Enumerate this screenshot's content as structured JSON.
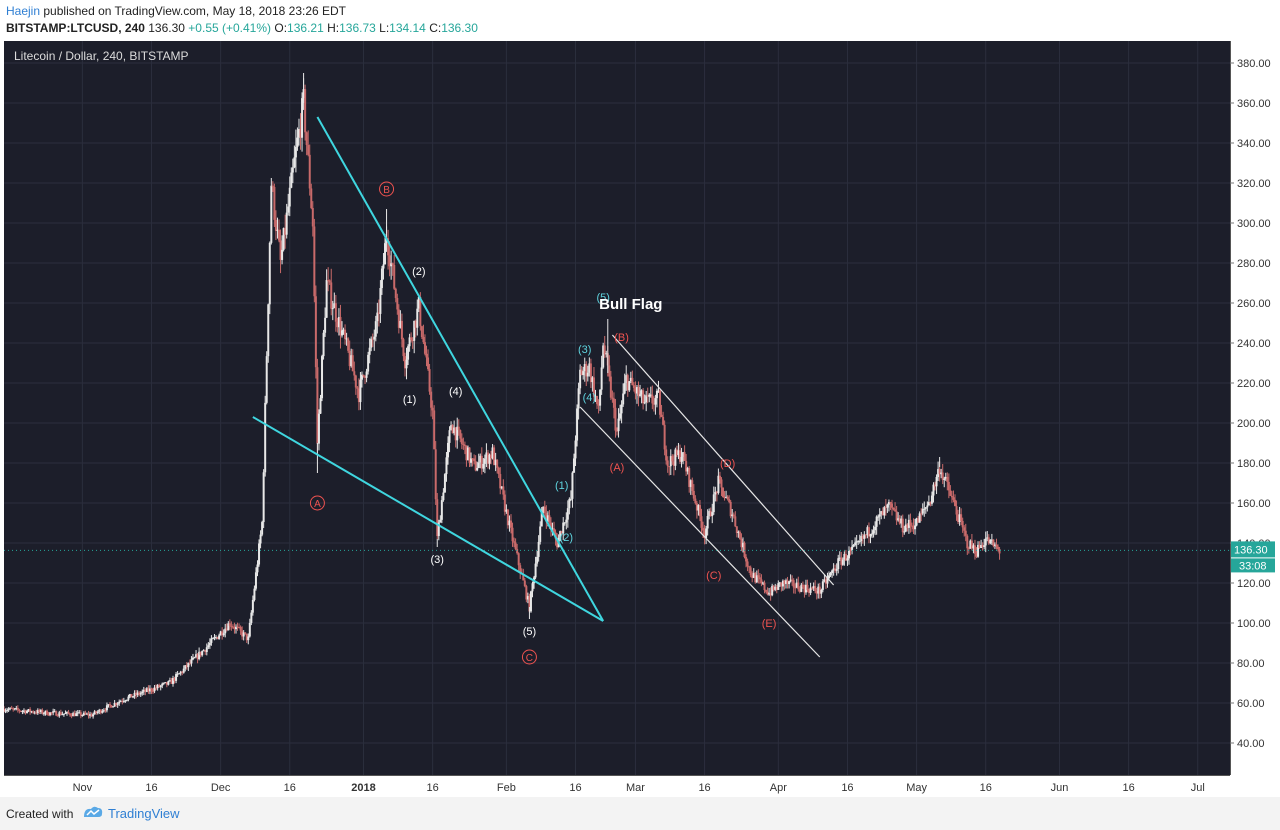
{
  "header": {
    "author": "Haejin",
    "published_text": "published on TradingView.com, May 18, 2018 23:26 EDT",
    "symbol": "BITSTAMP:LTCUSD, 240",
    "last": "136.30",
    "change": "+0.55 (+0.41%)",
    "o_label": "O:",
    "o_value": "136.21",
    "h_label": "H:",
    "h_value": "136.73",
    "l_label": "L:",
    "l_value": "134.14",
    "c_label": "C:",
    "c_value": "136.30"
  },
  "legend": "Litecoin / Dollar, 240, BITSTAMP",
  "footer": {
    "created": "Created with",
    "brand": "TradingView"
  },
  "colors": {
    "background": "#1c1e2a",
    "candle_up": "#e8e8e8",
    "candle_down": "#c96a6a",
    "trend_cyan": "#3fd6df",
    "channel_white": "#e6e6e6",
    "label_red": "#ef5350",
    "label_cyan": "#5fd4df",
    "price_badge": "#26a69a"
  },
  "chart_data": {
    "type": "candlestick",
    "title": "Litecoin / Dollar, 240, BITSTAMP",
    "ylim": [
      30,
      390
    ],
    "yticks": [
      "380.00",
      "360.00",
      "340.00",
      "320.00",
      "300.00",
      "280.00",
      "260.00",
      "240.00",
      "220.00",
      "200.00",
      "180.00",
      "160.00",
      "140.00",
      "120.00",
      "100.00",
      "80.00",
      "60.00",
      "40.00"
    ],
    "ytick_values": [
      380,
      360,
      340,
      320,
      300,
      280,
      260,
      240,
      220,
      200,
      180,
      160,
      140,
      120,
      100,
      80,
      60,
      40
    ],
    "x_start": "2017-10-15",
    "x_end": "2018-07-08",
    "xticks": [
      {
        "date": "2017-11-01",
        "label": "Nov"
      },
      {
        "date": "2017-11-16",
        "label": "16"
      },
      {
        "date": "2017-12-01",
        "label": "Dec"
      },
      {
        "date": "2017-12-16",
        "label": "16"
      },
      {
        "date": "2018-01-01",
        "label": "2018"
      },
      {
        "date": "2018-01-16",
        "label": "16"
      },
      {
        "date": "2018-02-01",
        "label": "Feb"
      },
      {
        "date": "2018-02-16",
        "label": "16"
      },
      {
        "date": "2018-03-01",
        "label": "Mar"
      },
      {
        "date": "2018-03-16",
        "label": "16"
      },
      {
        "date": "2018-04-01",
        "label": "Apr"
      },
      {
        "date": "2018-04-16",
        "label": "16"
      },
      {
        "date": "2018-05-01",
        "label": "May"
      },
      {
        "date": "2018-05-16",
        "label": "16"
      },
      {
        "date": "2018-06-01",
        "label": "Jun"
      },
      {
        "date": "2018-06-16",
        "label": "16"
      },
      {
        "date": "2018-07-01",
        "label": "Jul"
      }
    ],
    "price_path": [
      {
        "date": "2017-10-15",
        "price": 57
      },
      {
        "date": "2017-10-25",
        "price": 55
      },
      {
        "date": "2017-11-03",
        "price": 54
      },
      {
        "date": "2017-11-10",
        "price": 62
      },
      {
        "date": "2017-11-20",
        "price": 70
      },
      {
        "date": "2017-11-28",
        "price": 88
      },
      {
        "date": "2017-12-03",
        "price": 100
      },
      {
        "date": "2017-12-07",
        "price": 92
      },
      {
        "date": "2017-12-10",
        "price": 150
      },
      {
        "date": "2017-12-12",
        "price": 320
      },
      {
        "date": "2017-12-14",
        "price": 280
      },
      {
        "date": "2017-12-17",
        "price": 330
      },
      {
        "date": "2017-12-19",
        "price": 360
      },
      {
        "date": "2017-12-21",
        "price": 300
      },
      {
        "date": "2017-12-22",
        "price": 190
      },
      {
        "date": "2017-12-24",
        "price": 270
      },
      {
        "date": "2017-12-28",
        "price": 240
      },
      {
        "date": "2017-12-31",
        "price": 215
      },
      {
        "date": "2018-01-04",
        "price": 250
      },
      {
        "date": "2018-01-06",
        "price": 295
      },
      {
        "date": "2018-01-10",
        "price": 232
      },
      {
        "date": "2018-01-13",
        "price": 258
      },
      {
        "date": "2018-01-16",
        "price": 205
      },
      {
        "date": "2018-01-17",
        "price": 142
      },
      {
        "date": "2018-01-20",
        "price": 200
      },
      {
        "date": "2018-01-25",
        "price": 178
      },
      {
        "date": "2018-01-29",
        "price": 185
      },
      {
        "date": "2018-02-02",
        "price": 145
      },
      {
        "date": "2018-02-06",
        "price": 108
      },
      {
        "date": "2018-02-09",
        "price": 158
      },
      {
        "date": "2018-02-12",
        "price": 140
      },
      {
        "date": "2018-02-15",
        "price": 162
      },
      {
        "date": "2018-02-17",
        "price": 225
      },
      {
        "date": "2018-02-19",
        "price": 228
      },
      {
        "date": "2018-02-21",
        "price": 205
      },
      {
        "date": "2018-02-22",
        "price": 240
      },
      {
        "date": "2018-02-25",
        "price": 195
      },
      {
        "date": "2018-02-27",
        "price": 222
      },
      {
        "date": "2018-03-03",
        "price": 210
      },
      {
        "date": "2018-03-06",
        "price": 212
      },
      {
        "date": "2018-03-08",
        "price": 180
      },
      {
        "date": "2018-03-11",
        "price": 185
      },
      {
        "date": "2018-03-16",
        "price": 145
      },
      {
        "date": "2018-03-19",
        "price": 170
      },
      {
        "date": "2018-03-22",
        "price": 155
      },
      {
        "date": "2018-03-26",
        "price": 125
      },
      {
        "date": "2018-03-30",
        "price": 115
      },
      {
        "date": "2018-04-02",
        "price": 120
      },
      {
        "date": "2018-04-06",
        "price": 118
      },
      {
        "date": "2018-04-10",
        "price": 116
      },
      {
        "date": "2018-04-14",
        "price": 130
      },
      {
        "date": "2018-04-18",
        "price": 138
      },
      {
        "date": "2018-04-22",
        "price": 150
      },
      {
        "date": "2018-04-25",
        "price": 158
      },
      {
        "date": "2018-04-28",
        "price": 148
      },
      {
        "date": "2018-05-01",
        "price": 150
      },
      {
        "date": "2018-05-04",
        "price": 162
      },
      {
        "date": "2018-05-06",
        "price": 178
      },
      {
        "date": "2018-05-09",
        "price": 160
      },
      {
        "date": "2018-05-12",
        "price": 140
      },
      {
        "date": "2018-05-14",
        "price": 136
      },
      {
        "date": "2018-05-16",
        "price": 142
      },
      {
        "date": "2018-05-19",
        "price": 136
      }
    ],
    "extremes": [
      {
        "date": "2017-12-19",
        "price": 375
      },
      {
        "date": "2017-12-22",
        "price": 175
      },
      {
        "date": "2018-01-06",
        "price": 307
      },
      {
        "date": "2018-01-17",
        "price": 138
      },
      {
        "date": "2018-02-06",
        "price": 102
      },
      {
        "date": "2018-02-23",
        "price": 252
      },
      {
        "date": "2018-05-06",
        "price": 183
      }
    ],
    "lines": [
      {
        "id": "upper-wedge",
        "color": "cyan",
        "from": {
          "date": "2017-12-22",
          "price": 353
        },
        "to": {
          "date": "2018-02-22",
          "price": 101
        }
      },
      {
        "id": "lower-wedge",
        "color": "cyan",
        "from": {
          "date": "2017-12-08",
          "price": 203
        },
        "to": {
          "date": "2018-02-22",
          "price": 101
        }
      },
      {
        "id": "flag-upper",
        "color": "white",
        "from": {
          "date": "2018-02-24",
          "price": 244
        },
        "to": {
          "date": "2018-04-13",
          "price": 119
        }
      },
      {
        "id": "flag-lower",
        "color": "white",
        "from": {
          "date": "2018-02-17",
          "price": 208
        },
        "to": {
          "date": "2018-04-10",
          "price": 83
        }
      }
    ],
    "annotations": [
      {
        "text": "(2)",
        "date": "2018-01-13",
        "price": 276,
        "color": "white",
        "circled": false
      },
      {
        "text": "(1)",
        "date": "2018-01-11",
        "price": 212,
        "color": "white",
        "circled": false
      },
      {
        "text": "(4)",
        "date": "2018-01-21",
        "price": 216,
        "color": "white",
        "circled": false
      },
      {
        "text": "(3)",
        "date": "2018-01-17",
        "price": 132,
        "color": "white",
        "circled": false
      },
      {
        "text": "(5)",
        "date": "2018-02-06",
        "price": 96,
        "color": "white",
        "circled": false
      },
      {
        "text": "(1)",
        "date": "2018-02-13",
        "price": 169,
        "color": "cyan",
        "circled": false
      },
      {
        "text": "(2)",
        "date": "2018-02-14",
        "price": 143,
        "color": "cyan",
        "circled": false
      },
      {
        "text": "(3)",
        "date": "2018-02-18",
        "price": 237,
        "color": "cyan",
        "circled": false
      },
      {
        "text": "(4)",
        "date": "2018-02-19",
        "price": 213,
        "color": "cyan",
        "circled": false
      },
      {
        "text": "(5)",
        "date": "2018-02-22",
        "price": 263,
        "color": "cyan",
        "circled": false
      },
      {
        "text": "(B)",
        "date": "2018-02-26",
        "price": 243,
        "color": "red",
        "circled": false
      },
      {
        "text": "(A)",
        "date": "2018-02-25",
        "price": 178,
        "color": "red",
        "circled": false
      },
      {
        "text": "(D)",
        "date": "2018-03-21",
        "price": 180,
        "color": "red",
        "circled": false
      },
      {
        "text": "(C)",
        "date": "2018-03-18",
        "price": 124,
        "color": "red",
        "circled": false
      },
      {
        "text": "(E)",
        "date": "2018-03-30",
        "price": 100,
        "color": "red",
        "circled": false
      },
      {
        "text": "B",
        "date": "2018-01-06",
        "price": 317,
        "color": "red",
        "circled": true
      },
      {
        "text": "A",
        "date": "2017-12-22",
        "price": 160,
        "color": "red",
        "circled": true
      },
      {
        "text": "C",
        "date": "2018-02-06",
        "price": 83,
        "color": "red",
        "circled": true
      },
      {
        "text": "Bull Flag",
        "date": "2018-02-28",
        "price": 259,
        "color": "white",
        "circled": false,
        "bold": true
      }
    ],
    "last_price": {
      "label": "136.30",
      "price": 136.3
    },
    "countdown": {
      "label": "33:08"
    }
  }
}
